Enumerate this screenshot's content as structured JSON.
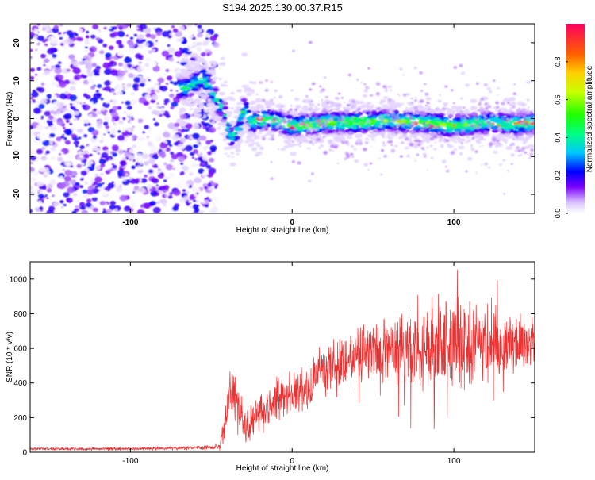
{
  "figure": {
    "title": "S194.2025.130.00.37.R15"
  },
  "chart_data": [
    {
      "type": "heatmap",
      "xlabel": "Height of straight line (km)",
      "ylabel": "Frequency (Hz)",
      "xlim": [
        -162,
        150
      ],
      "ylim": [
        -25,
        25
      ],
      "xticks": [
        -100,
        0,
        100
      ],
      "yticks": [
        -20,
        -10,
        0,
        10,
        20
      ],
      "colorbar": {
        "label": "Normalized spectral amplitude",
        "range": [
          0,
          1
        ],
        "ticks": [
          "0.0",
          "0.2",
          "0.4",
          "0.6",
          "0.8"
        ]
      },
      "description_points": {
        "noise_region_x": [
          -162,
          -55
        ],
        "transition_x": [
          -55,
          -30
        ],
        "ridge_x": [
          -20,
          150
        ],
        "ridge_frequency_hz": [
          [
            -65,
            8
          ],
          [
            -55,
            11
          ],
          [
            -48,
            6
          ],
          [
            -42,
            2
          ],
          [
            -38,
            -5
          ],
          [
            -33,
            -3
          ],
          [
            -30,
            3
          ],
          [
            -25,
            -1
          ],
          [
            -15,
            0
          ],
          [
            0,
            -2
          ],
          [
            20,
            -1
          ],
          [
            40,
            -1
          ],
          [
            60,
            -0.5
          ],
          [
            80,
            -1
          ],
          [
            100,
            -2
          ],
          [
            120,
            -1
          ],
          [
            140,
            -1.5
          ],
          [
            150,
            -1
          ]
        ]
      }
    },
    {
      "type": "line",
      "xlabel": "Height of straight line (km)",
      "ylabel": "SNR (10 * v/v)",
      "xlim": [
        -162,
        150
      ],
      "ylim": [
        0,
        1100
      ],
      "xticks": [
        -100,
        0,
        100
      ],
      "yticks": [
        0,
        200,
        400,
        600,
        800,
        1000
      ],
      "color": "#ee3030",
      "envelope": {
        "x": [
          -162,
          -140,
          -100,
          -60,
          -45,
          -42,
          -38,
          -35,
          -30,
          -20,
          -10,
          0,
          10,
          20,
          40,
          60,
          80,
          100,
          120,
          140,
          150
        ],
        "center": [
          20,
          20,
          20,
          25,
          30,
          150,
          350,
          300,
          150,
          230,
          300,
          340,
          380,
          470,
          560,
          610,
          620,
          600,
          620,
          620,
          620
        ],
        "spread": [
          10,
          10,
          10,
          12,
          20,
          120,
          200,
          220,
          120,
          150,
          150,
          160,
          170,
          180,
          200,
          230,
          320,
          300,
          250,
          200,
          180
        ]
      }
    }
  ]
}
